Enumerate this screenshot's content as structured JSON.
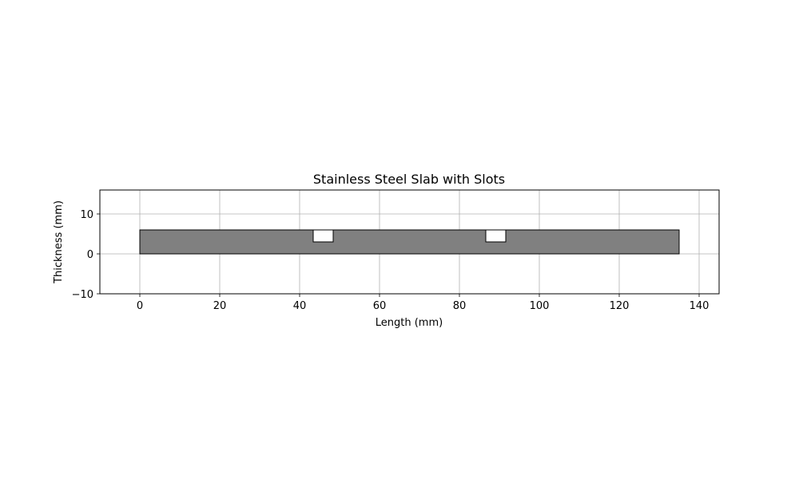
{
  "chart_data": {
    "type": "area",
    "title": "Stainless Steel Slab with Slots",
    "xlabel": "Length (mm)",
    "ylabel": "Thickness (mm)",
    "xlim": [
      -10,
      145
    ],
    "ylim": [
      -10,
      16
    ],
    "xticks": [
      0,
      20,
      40,
      60,
      80,
      100,
      120,
      140
    ],
    "yticks": [
      -10,
      0,
      10
    ],
    "xtick_labels": [
      "0",
      "20",
      "40",
      "60",
      "80",
      "100",
      "120",
      "140"
    ],
    "ytick_labels": [
      "−10",
      "0",
      "10"
    ],
    "grid": true,
    "slab": {
      "x0": 0,
      "x1": 135,
      "y0": 0,
      "y1": 6,
      "color": "#808080"
    },
    "slots": [
      {
        "x0": 43.4,
        "x1": 48.4,
        "y0": 3,
        "y1": 6,
        "color": "#ffffff"
      },
      {
        "x0": 86.6,
        "x1": 91.6,
        "y0": 3,
        "y1": 6,
        "color": "#ffffff"
      }
    ],
    "grid_color": "#b0b0b0"
  }
}
